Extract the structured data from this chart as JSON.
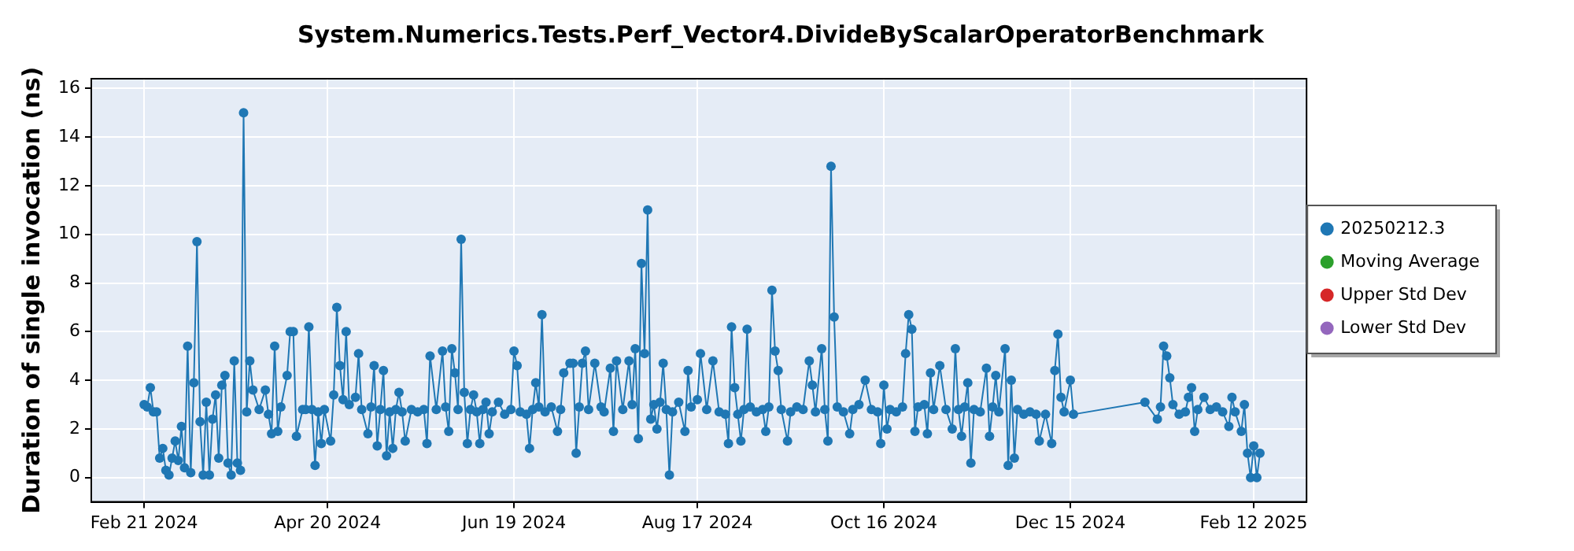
{
  "chart_data": {
    "type": "line",
    "title": "System.Numerics.Tests.Perf_Vector4.DivideByScalarOperatorBenchmark",
    "ylabel": "Duration of single invocation (ns)",
    "xlim": [
      "2024-02-04",
      "2025-03-01"
    ],
    "xticks": [
      {
        "value": "2024-02-21",
        "label": "Feb 21 2024"
      },
      {
        "value": "2024-04-20",
        "label": "Apr 20 2024"
      },
      {
        "value": "2024-06-19",
        "label": "Jun 19 2024"
      },
      {
        "value": "2024-08-17",
        "label": "Aug 17 2024"
      },
      {
        "value": "2024-10-16",
        "label": "Oct 16 2024"
      },
      {
        "value": "2024-12-15",
        "label": "Dec 15 2024"
      },
      {
        "value": "2025-02-12",
        "label": "Feb 12 2025"
      }
    ],
    "ylim": [
      -1.0,
      16.4
    ],
    "yticks": [
      0,
      2,
      4,
      6,
      8,
      10,
      12,
      14,
      16
    ],
    "grid": true,
    "legend": "right",
    "marker": "circle",
    "line_style": "solid",
    "series": [
      {
        "name": "20250212.3",
        "color": "#1f77b4",
        "x": [
          "2024-02-21",
          "2024-02-22",
          "2024-02-23",
          "2024-02-24",
          "2024-02-25",
          "2024-02-26",
          "2024-02-27",
          "2024-02-28",
          "2024-02-29",
          "2024-03-01",
          "2024-03-02",
          "2024-03-03",
          "2024-03-04",
          "2024-03-05",
          "2024-03-06",
          "2024-03-07",
          "2024-03-08",
          "2024-03-09",
          "2024-03-10",
          "2024-03-11",
          "2024-03-12",
          "2024-03-13",
          "2024-03-14",
          "2024-03-15",
          "2024-03-16",
          "2024-03-17",
          "2024-03-18",
          "2024-03-19",
          "2024-03-20",
          "2024-03-21",
          "2024-03-22",
          "2024-03-23",
          "2024-03-24",
          "2024-03-25",
          "2024-03-26",
          "2024-03-27",
          "2024-03-29",
          "2024-03-31",
          "2024-04-01",
          "2024-04-02",
          "2024-04-03",
          "2024-04-04",
          "2024-04-05",
          "2024-04-07",
          "2024-04-08",
          "2024-04-09",
          "2024-04-10",
          "2024-04-12",
          "2024-04-13",
          "2024-04-14",
          "2024-04-15",
          "2024-04-16",
          "2024-04-17",
          "2024-04-18",
          "2024-04-19",
          "2024-04-21",
          "2024-04-22",
          "2024-04-23",
          "2024-04-24",
          "2024-04-25",
          "2024-04-26",
          "2024-04-27",
          "2024-04-29",
          "2024-04-30",
          "2024-05-01",
          "2024-05-03",
          "2024-05-04",
          "2024-05-05",
          "2024-05-06",
          "2024-05-07",
          "2024-05-08",
          "2024-05-09",
          "2024-05-10",
          "2024-05-11",
          "2024-05-12",
          "2024-05-13",
          "2024-05-14",
          "2024-05-15",
          "2024-05-17",
          "2024-05-19",
          "2024-05-21",
          "2024-05-22",
          "2024-05-23",
          "2024-05-25",
          "2024-05-27",
          "2024-05-28",
          "2024-05-29",
          "2024-05-30",
          "2024-05-31",
          "2024-06-01",
          "2024-06-02",
          "2024-06-03",
          "2024-06-04",
          "2024-06-05",
          "2024-06-06",
          "2024-06-07",
          "2024-06-08",
          "2024-06-09",
          "2024-06-10",
          "2024-06-11",
          "2024-06-12",
          "2024-06-14",
          "2024-06-16",
          "2024-06-18",
          "2024-06-19",
          "2024-06-20",
          "2024-06-21",
          "2024-06-23",
          "2024-06-24",
          "2024-06-25",
          "2024-06-26",
          "2024-06-27",
          "2024-06-28",
          "2024-06-29",
          "2024-07-01",
          "2024-07-03",
          "2024-07-04",
          "2024-07-05",
          "2024-07-07",
          "2024-07-08",
          "2024-07-09",
          "2024-07-10",
          "2024-07-11",
          "2024-07-12",
          "2024-07-13",
          "2024-07-15",
          "2024-07-17",
          "2024-07-18",
          "2024-07-20",
          "2024-07-21",
          "2024-07-22",
          "2024-07-24",
          "2024-07-26",
          "2024-07-27",
          "2024-07-28",
          "2024-07-29",
          "2024-07-30",
          "2024-07-31",
          "2024-08-01",
          "2024-08-02",
          "2024-08-03",
          "2024-08-04",
          "2024-08-05",
          "2024-08-06",
          "2024-08-07",
          "2024-08-08",
          "2024-08-09",
          "2024-08-11",
          "2024-08-13",
          "2024-08-14",
          "2024-08-15",
          "2024-08-17",
          "2024-08-18",
          "2024-08-20",
          "2024-08-22",
          "2024-08-24",
          "2024-08-26",
          "2024-08-27",
          "2024-08-28",
          "2024-08-29",
          "2024-08-30",
          "2024-08-31",
          "2024-09-01",
          "2024-09-02",
          "2024-09-03",
          "2024-09-05",
          "2024-09-07",
          "2024-09-08",
          "2024-09-09",
          "2024-09-10",
          "2024-09-11",
          "2024-09-12",
          "2024-09-13",
          "2024-09-15",
          "2024-09-16",
          "2024-09-18",
          "2024-09-20",
          "2024-09-22",
          "2024-09-23",
          "2024-09-24",
          "2024-09-26",
          "2024-09-27",
          "2024-09-28",
          "2024-09-29",
          "2024-09-30",
          "2024-10-01",
          "2024-10-03",
          "2024-10-05",
          "2024-10-06",
          "2024-10-08",
          "2024-10-10",
          "2024-10-12",
          "2024-10-14",
          "2024-10-15",
          "2024-10-16",
          "2024-10-17",
          "2024-10-18",
          "2024-10-20",
          "2024-10-22",
          "2024-10-23",
          "2024-10-24",
          "2024-10-25",
          "2024-10-26",
          "2024-10-27",
          "2024-10-29",
          "2024-10-30",
          "2024-10-31",
          "2024-11-01",
          "2024-11-03",
          "2024-11-05",
          "2024-11-07",
          "2024-11-08",
          "2024-11-09",
          "2024-11-10",
          "2024-11-11",
          "2024-11-12",
          "2024-11-13",
          "2024-11-14",
          "2024-11-16",
          "2024-11-18",
          "2024-11-19",
          "2024-11-20",
          "2024-11-21",
          "2024-11-22",
          "2024-11-24",
          "2024-11-25",
          "2024-11-26",
          "2024-11-27",
          "2024-11-28",
          "2024-11-30",
          "2024-12-02",
          "2024-12-04",
          "2024-12-05",
          "2024-12-07",
          "2024-12-09",
          "2024-12-10",
          "2024-12-11",
          "2024-12-12",
          "2024-12-13",
          "2024-12-15",
          "2024-12-16",
          "2025-01-08",
          "2025-01-12",
          "2025-01-13",
          "2025-01-14",
          "2025-01-15",
          "2025-01-16",
          "2025-01-17",
          "2025-01-19",
          "2025-01-21",
          "2025-01-22",
          "2025-01-23",
          "2025-01-24",
          "2025-01-25",
          "2025-01-27",
          "2025-01-29",
          "2025-01-31",
          "2025-02-02",
          "2025-02-04",
          "2025-02-05",
          "2025-02-06",
          "2025-02-08",
          "2025-02-09",
          "2025-02-10",
          "2025-02-11",
          "2025-02-12",
          "2025-02-13",
          "2025-02-14"
        ],
        "values": [
          3.0,
          2.9,
          3.7,
          2.7,
          2.7,
          0.8,
          1.2,
          0.3,
          0.1,
          0.8,
          1.5,
          0.7,
          2.1,
          0.4,
          5.4,
          0.2,
          3.9,
          9.7,
          2.3,
          0.1,
          3.1,
          0.1,
          2.4,
          3.4,
          0.8,
          3.8,
          4.2,
          0.6,
          0.1,
          4.8,
          0.6,
          0.3,
          15.0,
          2.7,
          4.8,
          3.6,
          2.8,
          3.6,
          2.6,
          1.8,
          5.4,
          1.9,
          2.9,
          4.2,
          6.0,
          6.0,
          1.7,
          2.8,
          2.8,
          6.2,
          2.8,
          0.5,
          2.7,
          1.4,
          2.8,
          1.5,
          3.4,
          7.0,
          4.6,
          3.2,
          6.0,
          3.0,
          3.3,
          5.1,
          2.8,
          1.8,
          2.9,
          4.6,
          1.3,
          2.8,
          4.4,
          0.9,
          2.7,
          1.2,
          2.8,
          3.5,
          2.7,
          1.5,
          2.8,
          2.7,
          2.8,
          1.4,
          5.0,
          2.8,
          5.2,
          2.9,
          1.9,
          5.3,
          4.3,
          2.8,
          9.8,
          3.5,
          1.4,
          2.8,
          3.4,
          2.7,
          1.4,
          2.8,
          3.1,
          1.8,
          2.7,
          3.1,
          2.6,
          2.8,
          5.2,
          4.6,
          2.7,
          2.6,
          1.2,
          2.8,
          3.9,
          2.9,
          6.7,
          2.7,
          2.9,
          1.9,
          2.8,
          4.3,
          4.7,
          4.7,
          1.0,
          2.9,
          4.7,
          5.2,
          2.8,
          4.7,
          2.9,
          2.7,
          4.5,
          1.9,
          4.8,
          2.8,
          4.8,
          3.0,
          5.3,
          1.6,
          8.8,
          5.1,
          11.0,
          2.4,
          3.0,
          2.0,
          3.1,
          4.7,
          2.8,
          0.1,
          2.7,
          3.1,
          1.9,
          4.4,
          2.9,
          3.2,
          5.1,
          2.8,
          4.8,
          2.7,
          2.6,
          1.4,
          6.2,
          3.7,
          2.6,
          1.5,
          2.8,
          6.1,
          2.9,
          2.7,
          2.8,
          1.9,
          2.9,
          7.7,
          5.2,
          4.4,
          2.8,
          1.5,
          2.7,
          2.9,
          2.8,
          4.8,
          3.8,
          2.7,
          5.3,
          2.8,
          1.5,
          12.8,
          6.6,
          2.9,
          2.7,
          1.8,
          2.8,
          3.0,
          4.0,
          2.8,
          2.7,
          1.4,
          3.8,
          2.0,
          2.8,
          2.7,
          2.9,
          5.1,
          6.7,
          6.1,
          1.9,
          2.9,
          3.0,
          1.8,
          4.3,
          2.8,
          4.6,
          2.8,
          2.0,
          5.3,
          2.8,
          1.7,
          2.9,
          3.9,
          0.6,
          2.8,
          2.7,
          4.5,
          1.7,
          2.9,
          4.2,
          2.7,
          5.3,
          0.5,
          4.0,
          0.8,
          2.8,
          2.6,
          2.7,
          2.6,
          1.5,
          2.6,
          1.4,
          4.4,
          5.9,
          3.3,
          2.7,
          4.0,
          2.6,
          3.1,
          2.4,
          2.9,
          5.4,
          5.0,
          4.1,
          3.0,
          2.6,
          2.7,
          3.3,
          3.7,
          1.9,
          2.8,
          3.3,
          2.8,
          2.9,
          2.7,
          2.1,
          3.3,
          2.7,
          1.9,
          3.0,
          1.0,
          0.0,
          1.3,
          0.0,
          1.0
        ]
      },
      {
        "name": "Moving Average",
        "color": "#2ca02c"
      },
      {
        "name": "Upper Std Dev",
        "color": "#d62728"
      },
      {
        "name": "Lower Std Dev",
        "color": "#9467bd"
      }
    ]
  }
}
